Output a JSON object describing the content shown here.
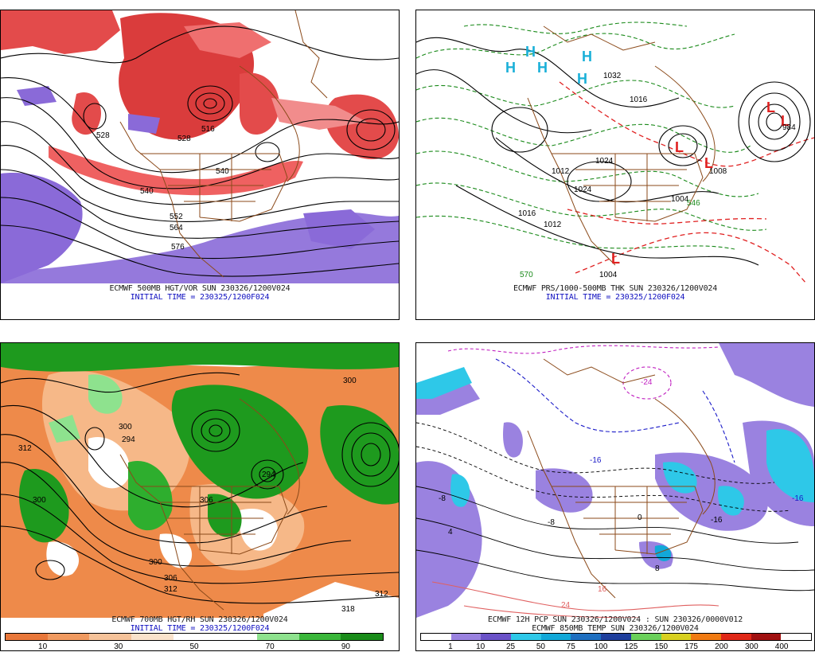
{
  "panels": {
    "p1": {
      "caption_line1": "ECMWF 500MB HGT/VOR SUN 230326/1200V024",
      "caption_line2": "INITIAL TIME = 230325/1200F024"
    },
    "p2": {
      "caption_line1": "ECMWF PRS/1000-500MB THK SUN 230326/1200V024",
      "caption_line2": "INITIAL TIME = 230325/1200F024"
    },
    "p3": {
      "caption_line1": "ECMWF 700MB HGT/RH SUN 230326/1200V024",
      "caption_line2": "INITIAL TIME = 230325/1200F024"
    },
    "p4": {
      "caption_line1": "ECMWF 12H PCP SUN 230326/1200V024 : SUN 230326/0000V012",
      "caption_line2": "ECMWF 850MB TEMP SUN 230326/1200V024"
    }
  },
  "colorbar_rh": {
    "labels": [
      "10",
      "30",
      "50",
      "70",
      "90"
    ],
    "colors": [
      "#e8773a",
      "#f09a60",
      "#f6c39a",
      "#fae3cc",
      "#ffffff",
      "#ffffff",
      "#8ee28e",
      "#3ab63a",
      "#1a8c1a"
    ]
  },
  "colorbar_pcp": {
    "labels": [
      "1",
      "10",
      "25",
      "50",
      "75",
      "100",
      "125",
      "150",
      "175",
      "200",
      "300",
      "400"
    ],
    "colors": [
      "#ffffff",
      "#9a82e0",
      "#6a52c8",
      "#2ec8e8",
      "#12a8d8",
      "#1e6fc0",
      "#1e3e9c",
      "#6ad05a",
      "#d8d020",
      "#f07a12",
      "#e02818",
      "#a01010",
      "#ffffff"
    ]
  },
  "map_labels": {
    "p1": [
      "528",
      "516",
      "540",
      "552",
      "564",
      "576",
      "528",
      "540"
    ],
    "p2": [
      "1032",
      "1016",
      "1024",
      "1024",
      "1016",
      "1012",
      "1008",
      "1004",
      "984",
      "1004",
      "570",
      "546",
      "1012"
    ],
    "p3": [
      "312",
      "300",
      "300",
      "300",
      "294",
      "306",
      "312",
      "318",
      "306",
      "294",
      "312",
      "300"
    ],
    "p4": [
      "-16",
      "-24",
      "-8",
      "0",
      "8",
      "16",
      "24",
      "-16",
      "-8",
      "4",
      "-16"
    ]
  }
}
